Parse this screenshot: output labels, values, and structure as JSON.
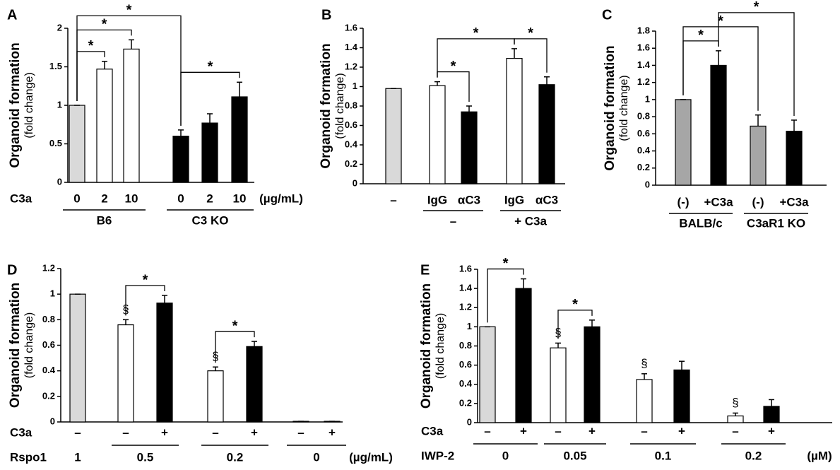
{
  "chart_data": [
    {
      "type": "bar",
      "title": "A",
      "y_label": "Organoid formation",
      "y_sublabel": "(fold change)",
      "category_label": "C3a",
      "unit": "(µg/mL)",
      "categories": [
        "0",
        "2",
        "10",
        "0",
        "2",
        "10"
      ],
      "values": [
        1,
        1.47,
        1.73,
        0.6,
        0.77,
        1.11
      ],
      "errors": [
        0,
        0.1,
        0.12,
        0.08,
        0.12,
        0.19
      ],
      "colors": [
        "#d9d9d9",
        "#ffffff",
        "#ffffff",
        "#000000",
        "#000000",
        "#000000"
      ],
      "groups": [
        {
          "label": "B6",
          "start": 0,
          "end": 2
        },
        {
          "label": "C3 KO",
          "start": 3,
          "end": 5
        }
      ],
      "brackets": [
        {
          "from": 0,
          "to": 1,
          "label": "*"
        },
        {
          "from": 0,
          "to": 2,
          "label": "*"
        },
        {
          "from": 0,
          "to": 3,
          "label": "*"
        },
        {
          "from": 3,
          "to": 5,
          "label": "*"
        }
      ],
      "ylim": [
        0,
        2
      ],
      "yticks": [
        0,
        0.5,
        1,
        1.5,
        2
      ]
    },
    {
      "type": "bar",
      "title": "B",
      "y_label": "Organoid formation",
      "y_sublabel": "(fold change)",
      "categories": [
        "–",
        "IgG",
        "αC3",
        "IgG",
        "αC3"
      ],
      "values": [
        0.98,
        1.01,
        0.74,
        1.29,
        1.02
      ],
      "errors": [
        0,
        0.04,
        0.06,
        0.1,
        0.08
      ],
      "colors": [
        "#d9d9d9",
        "#ffffff",
        "#000000",
        "#ffffff",
        "#000000"
      ],
      "groups": [
        {
          "label": "–",
          "start": 1,
          "end": 2
        },
        {
          "label": "+ C3a",
          "start": 3,
          "end": 4
        }
      ],
      "brackets": [
        {
          "from": 1,
          "to": 2,
          "label": "*"
        },
        {
          "from": 1,
          "to": 3,
          "label": "*"
        },
        {
          "from": 3,
          "to": 4,
          "label": "*"
        }
      ],
      "ylim": [
        0,
        1.6
      ],
      "yticks": [
        0,
        0.2,
        0.4,
        0.6,
        0.8,
        1,
        1.2,
        1.4,
        1.6
      ]
    },
    {
      "type": "bar",
      "title": "C",
      "y_label": "Organoid formation",
      "y_sublabel": "(fold change)",
      "categories": [
        "(-)",
        "+C3a",
        "(-)",
        "+C3a"
      ],
      "values": [
        1,
        1.4,
        0.69,
        0.63
      ],
      "errors": [
        0,
        0.17,
        0.13,
        0.13
      ],
      "colors": [
        "#a6a6a6",
        "#000000",
        "#a6a6a6",
        "#000000"
      ],
      "groups": [
        {
          "label": "BALB/c",
          "start": 0,
          "end": 1
        },
        {
          "label": "C3aR1 KO",
          "start": 2,
          "end": 3
        }
      ],
      "brackets": [
        {
          "from": 0,
          "to": 1,
          "label": "*"
        },
        {
          "from": 0,
          "to": 2,
          "label": "*"
        },
        {
          "from": 1,
          "to": 3,
          "label": "*"
        }
      ],
      "ylim": [
        0,
        1.8
      ],
      "yticks": [
        0,
        0.2,
        0.4,
        0.6,
        0.8,
        1,
        1.2,
        1.4,
        1.6,
        1.8
      ]
    },
    {
      "type": "bar",
      "title": "D",
      "y_label": "Organoid formation",
      "y_sublabel": "(fold change)",
      "category_label": "C3a",
      "group_label": "Rspo1",
      "unit": "(µg/mL)",
      "categories": [
        "–",
        "–",
        "+",
        "–",
        "+",
        "–",
        "+"
      ],
      "values": [
        1,
        0.76,
        0.93,
        0.4,
        0.59,
        0.005,
        0.005
      ],
      "errors": [
        0,
        0.04,
        0.06,
        0.03,
        0.04,
        0,
        0
      ],
      "colors": [
        "#d9d9d9",
        "#ffffff",
        "#000000",
        "#ffffff",
        "#000000",
        "#ffffff",
        "#000000"
      ],
      "groups": [
        {
          "label": "1",
          "start": 0,
          "end": 0
        },
        {
          "label": "0.5",
          "start": 1,
          "end": 2
        },
        {
          "label": "0.2",
          "start": 3,
          "end": 4
        },
        {
          "label": "0",
          "start": 5,
          "end": 6
        }
      ],
      "brackets": [
        {
          "from": 1,
          "to": 2,
          "label": "*"
        },
        {
          "from": 3,
          "to": 4,
          "label": "*"
        }
      ],
      "markers": [
        {
          "index": 1,
          "label": "§"
        },
        {
          "index": 3,
          "label": "§"
        }
      ],
      "ylim": [
        0,
        1.2
      ],
      "yticks": [
        0,
        0.2,
        0.4,
        0.6,
        0.8,
        1,
        1.2
      ]
    },
    {
      "type": "bar",
      "title": "E",
      "y_label": "Organoid formation",
      "y_sublabel": "(fold change)",
      "category_label": "C3a",
      "group_label": "IWP-2",
      "unit": "(µM)",
      "categories": [
        "–",
        "+",
        "–",
        "+",
        "–",
        "+",
        "–",
        "+"
      ],
      "values": [
        1,
        1.4,
        0.78,
        1.0,
        0.45,
        0.55,
        0.07,
        0.17
      ],
      "errors": [
        0,
        0.1,
        0.05,
        0.07,
        0.06,
        0.09,
        0.03,
        0.07
      ],
      "colors": [
        "#d9d9d9",
        "#000000",
        "#ffffff",
        "#000000",
        "#ffffff",
        "#000000",
        "#ffffff",
        "#000000"
      ],
      "groups": [
        {
          "label": "0",
          "start": 0,
          "end": 1
        },
        {
          "label": "0.05",
          "start": 2,
          "end": 3
        },
        {
          "label": "0.1",
          "start": 4,
          "end": 5
        },
        {
          "label": "0.2",
          "start": 6,
          "end": 7
        }
      ],
      "brackets": [
        {
          "from": 0,
          "to": 1,
          "label": "*"
        },
        {
          "from": 2,
          "to": 3,
          "label": "*"
        }
      ],
      "markers": [
        {
          "index": 2,
          "label": "§"
        },
        {
          "index": 4,
          "label": "§"
        },
        {
          "index": 6,
          "label": "§"
        }
      ],
      "ylim": [
        0,
        1.6
      ],
      "yticks": [
        0,
        0.2,
        0.4,
        0.6,
        0.8,
        1,
        1.2,
        1.4,
        1.6
      ]
    }
  ]
}
